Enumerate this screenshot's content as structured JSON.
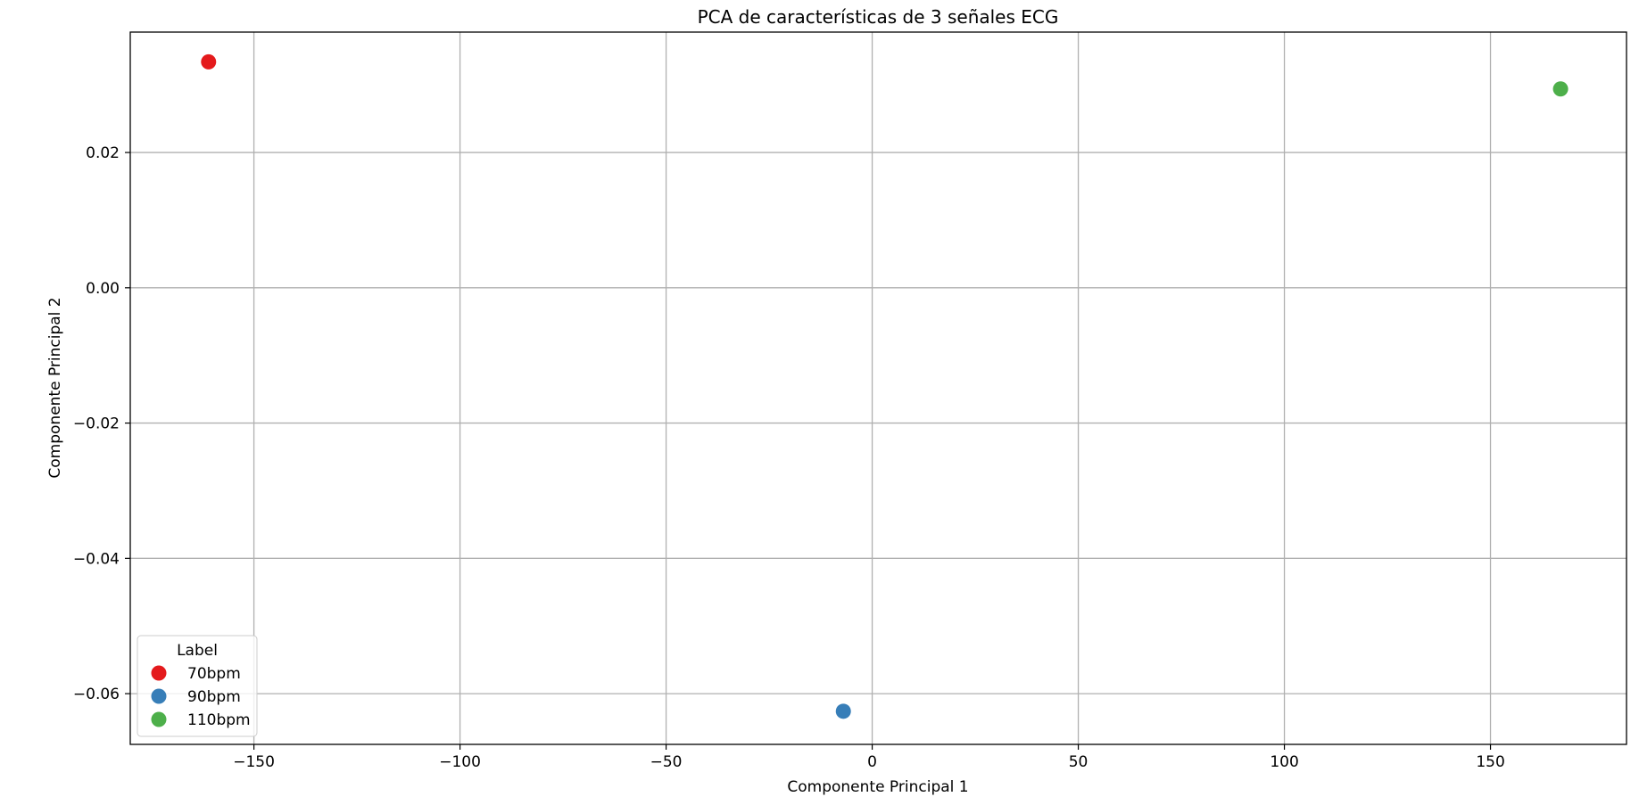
{
  "chart_data": {
    "type": "scatter",
    "title": "PCA de características de 3 señales ECG",
    "xlabel": "Componente Principal 1",
    "ylabel": "Componente Principal 2",
    "xlim": [
      -180,
      183
    ],
    "ylim": [
      -0.0675,
      0.0378
    ],
    "xticks": [
      -150,
      -100,
      -50,
      0,
      50,
      100,
      150
    ],
    "xtick_labels": [
      "−150",
      "−100",
      "−50",
      "0",
      "50",
      "100",
      "150"
    ],
    "yticks": [
      -0.06,
      -0.04,
      -0.02,
      0.0,
      0.02
    ],
    "ytick_labels": [
      "−0.06",
      "−0.04",
      "−0.02",
      "0.00",
      "0.02"
    ],
    "grid": true,
    "legend": {
      "title": "Label",
      "placement": "lower-left"
    },
    "series": [
      {
        "name": "70bpm",
        "color": "#e41a1c",
        "points": [
          {
            "x": -161,
            "y": 0.0334
          }
        ]
      },
      {
        "name": "90bpm",
        "color": "#377eb8",
        "points": [
          {
            "x": -7,
            "y": -0.0626
          }
        ]
      },
      {
        "name": "110bpm",
        "color": "#4daf4a",
        "points": [
          {
            "x": 167,
            "y": 0.0294
          }
        ]
      }
    ]
  }
}
